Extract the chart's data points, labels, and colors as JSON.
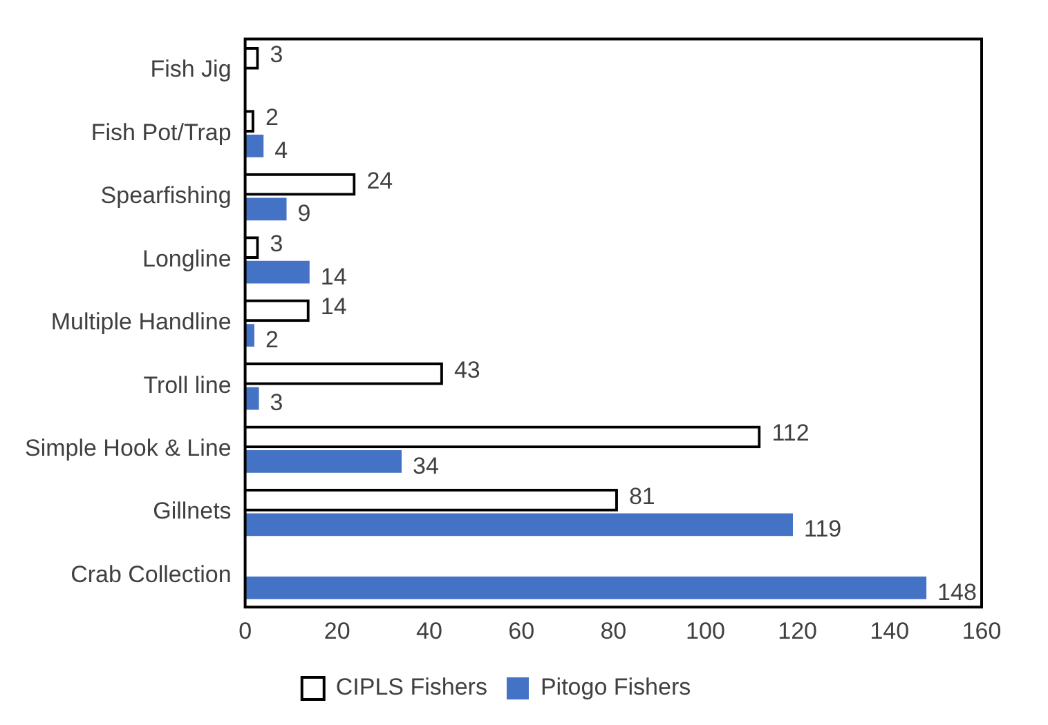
{
  "chart_data": {
    "type": "bar",
    "orientation": "horizontal",
    "categories": [
      "Fish Jig",
      "Fish Pot/Trap",
      "Spearfishing",
      "Longline",
      "Multiple Handline",
      "Troll line",
      "Simple Hook & Line",
      "Gillnets",
      "Crab Collection"
    ],
    "series": [
      {
        "name": "CIPLS Fishers",
        "color": "#000000",
        "values": [
          3,
          2,
          24,
          3,
          14,
          43,
          112,
          81,
          null
        ]
      },
      {
        "name": "Pitogo Fishers",
        "color": "#4472c4",
        "values": [
          null,
          4,
          9,
          14,
          2,
          3,
          34,
          119,
          148
        ]
      }
    ],
    "xlim": [
      0,
      160
    ],
    "xticks": [
      0,
      20,
      40,
      60,
      80,
      100,
      120,
      140,
      160
    ],
    "grid": false,
    "legend": "bottom",
    "data_labels": true
  }
}
